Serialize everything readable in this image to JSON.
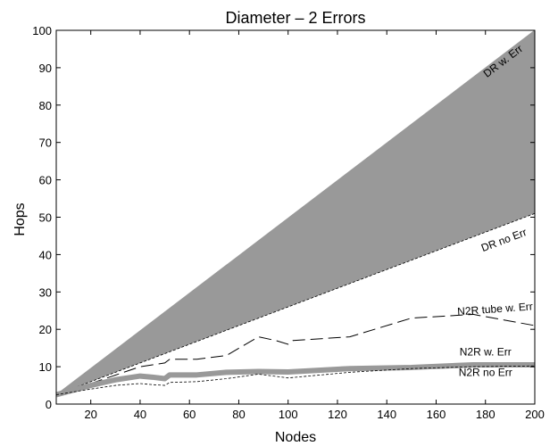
{
  "chart_data": {
    "type": "area",
    "title": "Diameter – 2 Errors",
    "xlabel": "Nodes",
    "ylabel": "Hops",
    "xlim": [
      6,
      200
    ],
    "ylim": [
      0,
      100
    ],
    "xticks": [
      20,
      40,
      60,
      80,
      100,
      120,
      140,
      160,
      180,
      200
    ],
    "yticks": [
      0,
      10,
      20,
      30,
      40,
      50,
      60,
      70,
      80,
      90,
      100
    ],
    "grid": false,
    "legend": "none",
    "colors": {
      "band": "#999999",
      "line": "#000000"
    },
    "series": [
      {
        "name": "DR w. Err",
        "style": "band-upper",
        "x": [
          6,
          200
        ],
        "y": [
          2.5,
          100
        ]
      },
      {
        "name": "DR no Err",
        "style": "band-lower-dashed",
        "x": [
          6,
          200
        ],
        "y": [
          2.5,
          51
        ]
      },
      {
        "name": "N2R tube w. Err",
        "style": "long-dash",
        "x": [
          6,
          20,
          40,
          50,
          52,
          63,
          75,
          88,
          95,
          100,
          102,
          125,
          150,
          175,
          200
        ],
        "y": [
          2.5,
          5.5,
          10,
          11,
          12,
          12,
          13,
          18,
          17,
          16,
          17,
          18,
          23,
          24,
          21
        ]
      },
      {
        "name": "N2R w. Err",
        "style": "thick-band",
        "x": [
          6,
          20,
          30,
          40,
          45,
          50,
          52,
          63,
          75,
          88,
          100,
          125,
          150,
          175,
          200
        ],
        "y": [
          2.5,
          5,
          6.5,
          7.5,
          7.2,
          6.8,
          7.8,
          7.8,
          8.5,
          8.7,
          8.6,
          9.5,
          9.8,
          10.5,
          10.5
        ]
      },
      {
        "name": "N2R no Err",
        "style": "short-dash",
        "x": [
          6,
          20,
          30,
          40,
          45,
          50,
          52,
          63,
          75,
          88,
          100,
          125,
          150,
          175,
          200
        ],
        "y": [
          2.5,
          4,
          5,
          5.5,
          5.2,
          5,
          5.8,
          6,
          6.8,
          8,
          7,
          8.5,
          9.5,
          10,
          10.2
        ]
      }
    ],
    "annotations": [
      {
        "text": "DR w. Err",
        "x": 188,
        "y": 91
      },
      {
        "text": "DR no Err",
        "x": 188,
        "y": 43
      },
      {
        "text": "N2R tube w. Err",
        "x": 184,
        "y": 24.5
      },
      {
        "text": "N2R w. Err",
        "x": 180,
        "y": 13
      },
      {
        "text": "N2R no Err",
        "x": 180,
        "y": 7.5
      }
    ]
  }
}
